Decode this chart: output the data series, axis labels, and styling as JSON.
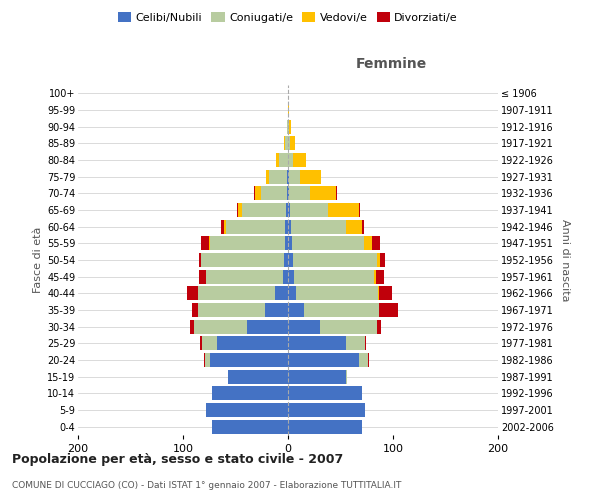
{
  "age_groups": [
    "0-4",
    "5-9",
    "10-14",
    "15-19",
    "20-24",
    "25-29",
    "30-34",
    "35-39",
    "40-44",
    "45-49",
    "50-54",
    "55-59",
    "60-64",
    "65-69",
    "70-74",
    "75-79",
    "80-84",
    "85-89",
    "90-94",
    "95-99",
    "100+"
  ],
  "birth_years": [
    "2002-2006",
    "1997-2001",
    "1992-1996",
    "1987-1991",
    "1982-1986",
    "1977-1981",
    "1972-1976",
    "1967-1971",
    "1962-1966",
    "1957-1961",
    "1952-1956",
    "1947-1951",
    "1942-1946",
    "1937-1941",
    "1932-1936",
    "1927-1931",
    "1922-1926",
    "1917-1921",
    "1912-1916",
    "1907-1911",
    "≤ 1906"
  ],
  "male": {
    "celibi": [
      72,
      78,
      72,
      57,
      74,
      68,
      39,
      22,
      12,
      5,
      4,
      3,
      3,
      2,
      1,
      1,
      0,
      0,
      0,
      0,
      0
    ],
    "coniugati": [
      0,
      0,
      0,
      0,
      5,
      14,
      51,
      64,
      74,
      73,
      79,
      71,
      56,
      42,
      25,
      17,
      9,
      3,
      1,
      0,
      0
    ],
    "vedovi": [
      0,
      0,
      0,
      0,
      0,
      0,
      0,
      0,
      0,
      0,
      0,
      1,
      2,
      4,
      5,
      3,
      2,
      1,
      0,
      0,
      0
    ],
    "divorziati": [
      0,
      0,
      0,
      0,
      1,
      2,
      3,
      5,
      10,
      7,
      2,
      8,
      3,
      1,
      1,
      0,
      0,
      0,
      0,
      0,
      0
    ]
  },
  "female": {
    "nubili": [
      70,
      73,
      70,
      55,
      68,
      55,
      30,
      15,
      8,
      6,
      5,
      4,
      3,
      2,
      1,
      1,
      0,
      0,
      0,
      0,
      0
    ],
    "coniugate": [
      0,
      0,
      0,
      1,
      8,
      18,
      55,
      72,
      78,
      76,
      80,
      68,
      52,
      36,
      20,
      10,
      5,
      2,
      1,
      0,
      0
    ],
    "vedove": [
      0,
      0,
      0,
      0,
      0,
      0,
      0,
      0,
      1,
      2,
      3,
      8,
      15,
      30,
      25,
      20,
      12,
      5,
      2,
      1,
      0
    ],
    "divorziate": [
      0,
      0,
      0,
      0,
      1,
      1,
      4,
      18,
      12,
      7,
      4,
      8,
      2,
      1,
      1,
      0,
      0,
      0,
      0,
      0,
      0
    ]
  },
  "colors": {
    "celibi": "#4472c4",
    "coniugati": "#b8cca0",
    "vedovi": "#ffc000",
    "divorziati": "#c0000b"
  },
  "title": "Popolazione per età, sesso e stato civile - 2007",
  "subtitle": "COMUNE DI CUCCIAGO (CO) - Dati ISTAT 1° gennaio 2007 - Elaborazione TUTTITALIA.IT",
  "label_femmine": "Femmine",
  "ylabel_left": "Fasce di età",
  "ylabel_right": "Anni di nascita",
  "xlim": 200,
  "bg_color": "#ffffff",
  "grid_color": "#cccccc",
  "legend_labels": [
    "Celibi/Nubili",
    "Coniugati/e",
    "Vedovi/e",
    "Divorziati/e"
  ]
}
